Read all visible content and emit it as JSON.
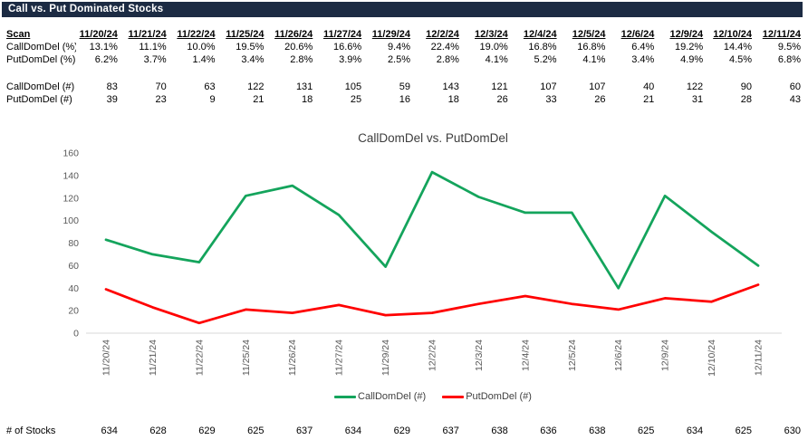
{
  "header": {
    "title": "Call vs. Put Dominated Stocks"
  },
  "table": {
    "corner_label": "Scan",
    "dates": [
      "11/20/24",
      "11/21/24",
      "11/22/24",
      "11/25/24",
      "11/26/24",
      "11/27/24",
      "11/29/24",
      "12/2/24",
      "12/3/24",
      "12/4/24",
      "12/5/24",
      "12/6/24",
      "12/9/24",
      "12/10/24",
      "12/11/24"
    ],
    "rows": [
      {
        "label": "CallDomDel (%)",
        "values": [
          "13.1%",
          "11.1%",
          "10.0%",
          "19.5%",
          "20.6%",
          "16.6%",
          "9.4%",
          "22.4%",
          "19.0%",
          "16.8%",
          "16.8%",
          "6.4%",
          "19.2%",
          "14.4%",
          "9.5%"
        ]
      },
      {
        "label": "PutDomDel (%)",
        "values": [
          "6.2%",
          "3.7%",
          "1.4%",
          "3.4%",
          "2.8%",
          "3.9%",
          "2.5%",
          "2.8%",
          "4.1%",
          "5.2%",
          "4.1%",
          "3.4%",
          "4.9%",
          "4.5%",
          "6.8%"
        ]
      },
      {
        "label": "CallDomDel (#)",
        "values": [
          "83",
          "70",
          "63",
          "122",
          "131",
          "105",
          "59",
          "143",
          "121",
          "107",
          "107",
          "40",
          "122",
          "90",
          "60"
        ]
      },
      {
        "label": "PutDomDel (#)",
        "values": [
          "39",
          "23",
          "9",
          "21",
          "18",
          "25",
          "16",
          "18",
          "26",
          "33",
          "26",
          "21",
          "31",
          "28",
          "43"
        ]
      }
    ]
  },
  "footer_row": {
    "label": "# of Stocks",
    "values": [
      "634",
      "628",
      "629",
      "625",
      "637",
      "634",
      "629",
      "637",
      "638",
      "636",
      "638",
      "625",
      "634",
      "625",
      "630"
    ]
  },
  "chart_data": {
    "type": "line",
    "title": "CallDomDel vs. PutDomDel",
    "categories": [
      "11/20/24",
      "11/21/24",
      "11/22/24",
      "11/25/24",
      "11/26/24",
      "11/27/24",
      "11/29/24",
      "12/2/24",
      "12/3/24",
      "12/4/24",
      "12/5/24",
      "12/6/24",
      "12/9/24",
      "12/10/24",
      "12/11/24"
    ],
    "series": [
      {
        "name": "CallDomDel (#)",
        "color": "#14a45c",
        "values": [
          83,
          70,
          63,
          122,
          131,
          105,
          59,
          143,
          121,
          107,
          107,
          40,
          122,
          90,
          60
        ]
      },
      {
        "name": "PutDomDel (#)",
        "color": "#ff0000",
        "values": [
          39,
          23,
          9,
          21,
          18,
          25,
          16,
          18,
          26,
          33,
          26,
          21,
          31,
          28,
          43
        ]
      }
    ],
    "xlabel": "",
    "ylabel": "",
    "ylim": [
      0,
      160
    ],
    "ytick_step": 20,
    "grid": false,
    "legend_position": "bottom"
  },
  "colors": {
    "title_bar_bg": "#1c2b43",
    "title_bar_text": "#ffffff",
    "axis_line": "#d9d9d9",
    "tick_text": "#595959",
    "chart_title_text": "#3d3d3d",
    "call_line": "#14a45c",
    "put_line": "#ff0000"
  }
}
